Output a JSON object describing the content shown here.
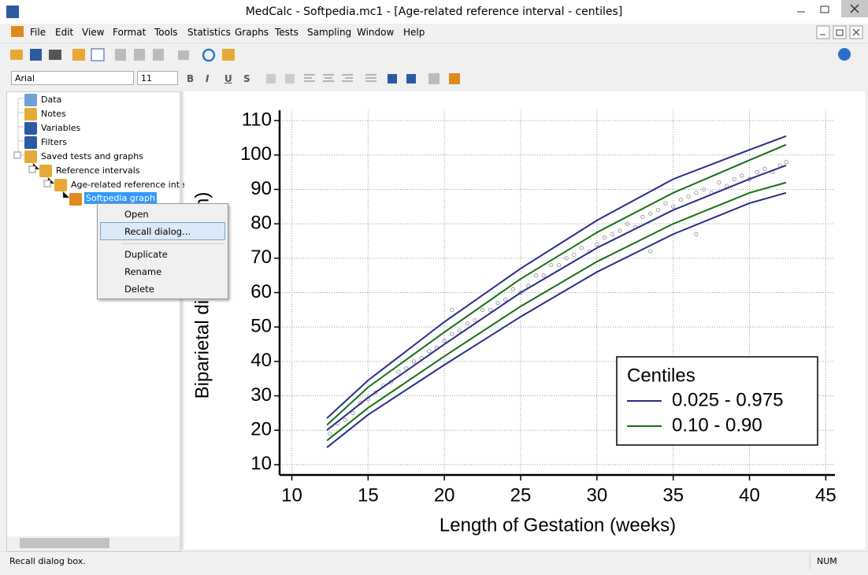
{
  "window": {
    "title": "MedCalc - Softpedia.mc1 - [Age-related reference interval - centiles]"
  },
  "menu": [
    "File",
    "Edit",
    "View",
    "Format",
    "Tools",
    "Statistics",
    "Graphs",
    "Tests",
    "Sampling",
    "Window",
    "Help"
  ],
  "toolbar": {
    "font": "Arial",
    "size": "11",
    "format": [
      "B",
      "I",
      "U",
      "S"
    ]
  },
  "tree": [
    "Data",
    "Notes",
    "Variables",
    "Filters",
    "Saved tests and graphs",
    "Reference intervals",
    "Age-related reference interval",
    "Softpedia graph"
  ],
  "context_menu": {
    "items": [
      "Open",
      "Recall dialog...",
      "Duplicate",
      "Rename",
      "Delete"
    ]
  },
  "status": {
    "message": "Recall dialog box.",
    "indicator": "NUM"
  },
  "chart_data": {
    "type": "line",
    "x_label": "Length of Gestation (weeks)",
    "y_label": "Biparietal diameter (mm)",
    "xlim": [
      9.2,
      45.6
    ],
    "ylim": [
      7,
      113
    ],
    "xticks": [
      10,
      15,
      20,
      25,
      30,
      35,
      40,
      45
    ],
    "yticks": [
      10,
      20,
      30,
      40,
      50,
      60,
      70,
      80,
      90,
      100,
      110
    ],
    "grid": true,
    "legend": {
      "title": "Centiles",
      "position": "lower right"
    },
    "x": [
      12.3,
      15,
      20,
      25,
      30,
      35,
      40,
      42.4
    ],
    "series": [
      {
        "name": "0.025 - 0.975",
        "color": "#2b2b8c",
        "lower": [
          15,
          24.5,
          39,
          53,
          66,
          77,
          86,
          89
        ],
        "upper": [
          23.5,
          34.5,
          51.5,
          67,
          81,
          93,
          101.5,
          105.5
        ]
      },
      {
        "name": "0.10 - 0.90",
        "color": "#167016",
        "lower": [
          17,
          26.5,
          41.5,
          56,
          69,
          80,
          89,
          92
        ],
        "upper": [
          21.5,
          32.5,
          48.5,
          64,
          77.5,
          89,
          98.5,
          103
        ]
      },
      {
        "type": "line",
        "color": "#2b2b8c",
        "values": [
          20,
          29.5,
          45,
          60,
          73,
          84,
          93,
          97
        ]
      },
      {
        "type": "scatter",
        "color": "#8c8c8c",
        "x": [
          12.5,
          13,
          13.5,
          14,
          14.5,
          15,
          15.5,
          16,
          16.5,
          17,
          17.5,
          18,
          18.5,
          19,
          19.5,
          20,
          20.5,
          21,
          21.5,
          22,
          22.5,
          23,
          23.5,
          24,
          24.5,
          25,
          25.5,
          26,
          26.5,
          27,
          27.5,
          28,
          28.5,
          29,
          29.5,
          30,
          30.5,
          31,
          31.5,
          32,
          32.5,
          33,
          33.5,
          34,
          34.5,
          35,
          35.5,
          36,
          36.5,
          37,
          37.5,
          38,
          38.5,
          39,
          39.5,
          40,
          40.5,
          41,
          41.5,
          42,
          42.4,
          33.5,
          36.5,
          20.5
        ],
        "values": [
          19,
          22,
          23,
          25,
          28,
          29,
          31,
          33,
          34,
          37,
          38,
          40,
          41,
          43,
          44,
          46,
          48,
          49,
          51,
          52,
          55,
          55,
          57,
          58,
          61,
          60,
          62,
          65,
          65,
          68,
          68,
          70,
          71,
          73,
          72,
          74,
          76,
          77,
          78,
          80,
          79,
          82,
          83,
          84,
          86,
          85,
          87,
          88,
          89,
          90,
          89,
          92,
          91,
          93,
          94,
          93,
          95,
          96,
          95,
          97,
          98,
          72,
          77,
          55
        ]
      }
    ]
  }
}
